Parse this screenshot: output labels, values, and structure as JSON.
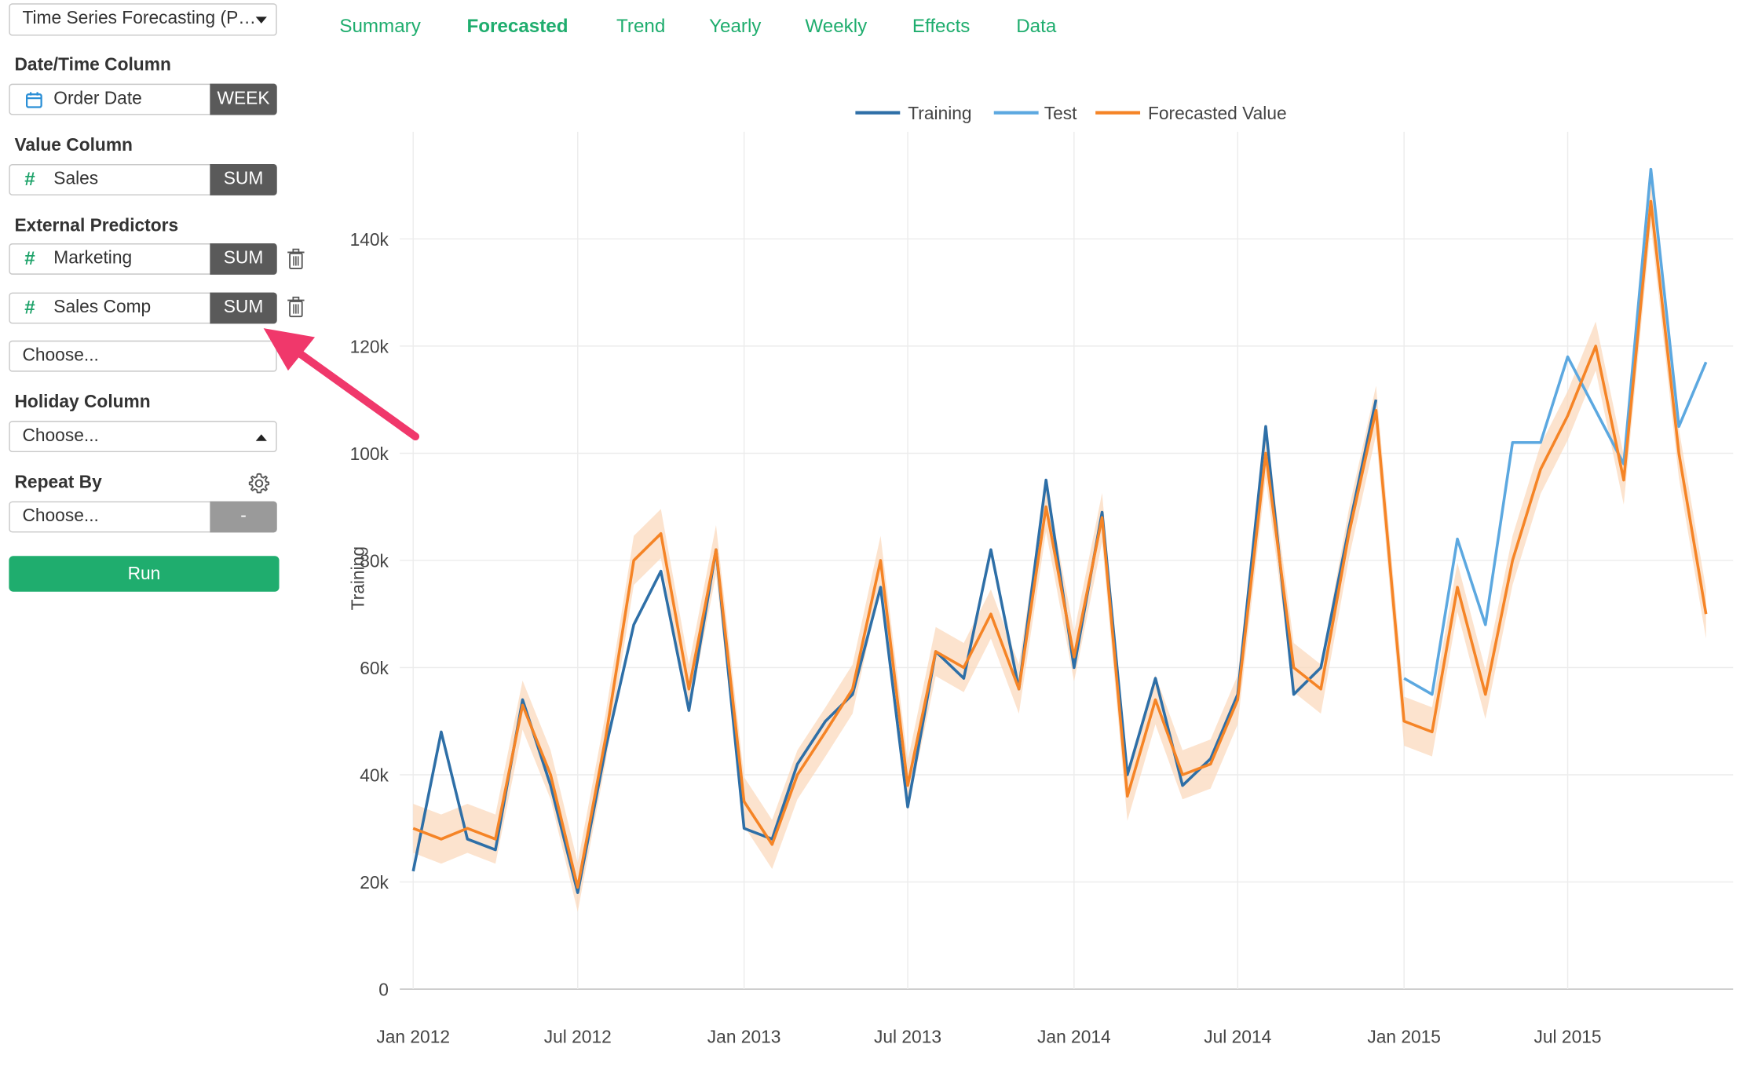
{
  "sidebar": {
    "analysis_select": "Time Series Forecasting (P…",
    "datetime_label": "Date/Time Column",
    "datetime_field": {
      "value": "Order Date",
      "agg": "WEEK",
      "icon": "calendar-icon"
    },
    "value_label": "Value Column",
    "value_field": {
      "value": "Sales",
      "agg": "SUM",
      "icon": "hash-icon"
    },
    "predictors_label": "External Predictors",
    "predictors": [
      {
        "value": "Marketing",
        "agg": "SUM",
        "icon": "hash-icon"
      },
      {
        "value": "Sales Comp",
        "agg": "SUM",
        "icon": "hash-icon"
      }
    ],
    "predictor_choose": "Choose...",
    "holiday_label": "Holiday Column",
    "holiday_choose": "Choose...",
    "repeat_label": "Repeat By",
    "repeat_choose": "Choose...",
    "repeat_agg": "-",
    "run_label": "Run"
  },
  "tabs": [
    {
      "label": "Summary",
      "active": false
    },
    {
      "label": "Forecasted",
      "active": true
    },
    {
      "label": "Trend",
      "active": false
    },
    {
      "label": "Yearly",
      "active": false
    },
    {
      "label": "Weekly",
      "active": false
    },
    {
      "label": "Effects",
      "active": false
    },
    {
      "label": "Data",
      "active": false
    }
  ],
  "colors": {
    "training": "#2e6fa7",
    "test": "#5ca8e0",
    "forecast": "#f58426",
    "band": "#fbd9bd",
    "accent": "#1fad6e",
    "arrow": "#f0386b"
  },
  "chart_data": {
    "type": "line",
    "ylabel": "Training",
    "legend_position": "top",
    "series_names": [
      "Training",
      "Test",
      "Forecasted Value"
    ],
    "x_ticks": [
      "Jan 2012",
      "Jul 2012",
      "Jan 2013",
      "Jul 2013",
      "Jan 2014",
      "Jul 2014",
      "Jan 2015",
      "Jul 2015"
    ],
    "y_ticks": [
      "0",
      "20k",
      "40k",
      "60k",
      "80k",
      "100k",
      "120k",
      "140k"
    ],
    "ylim": [
      0,
      160000
    ],
    "grid": true,
    "x_range": [
      "2012-01-01",
      "2015-12-31"
    ],
    "training": {
      "x": [
        "2012-01",
        "2012-02",
        "2012-03",
        "2012-04",
        "2012-05",
        "2012-06",
        "2012-07",
        "2012-08",
        "2012-09",
        "2012-10",
        "2012-11",
        "2012-12",
        "2013-01",
        "2013-02",
        "2013-03",
        "2013-04",
        "2013-05",
        "2013-06",
        "2013-07",
        "2013-08",
        "2013-09",
        "2013-10",
        "2013-11",
        "2013-12",
        "2014-01",
        "2014-02",
        "2014-03",
        "2014-04",
        "2014-05",
        "2014-06",
        "2014-07",
        "2014-08",
        "2014-09",
        "2014-10",
        "2014-11",
        "2014-12"
      ],
      "y": [
        22000,
        48000,
        28000,
        26000,
        54000,
        38000,
        18000,
        45000,
        68000,
        78000,
        52000,
        82000,
        30000,
        28000,
        42000,
        50000,
        55000,
        75000,
        34000,
        63000,
        58000,
        82000,
        56000,
        95000,
        60000,
        89000,
        40000,
        58000,
        38000,
        43000,
        55000,
        105000,
        55000,
        60000,
        86000,
        110000
      ]
    },
    "test": {
      "x": [
        "2015-01",
        "2015-02",
        "2015-03",
        "2015-04",
        "2015-05",
        "2015-06",
        "2015-07",
        "2015-08",
        "2015-09",
        "2015-10",
        "2015-11",
        "2015-12"
      ],
      "y": [
        58000,
        55000,
        84000,
        68000,
        102000,
        102000,
        118000,
        108000,
        98000,
        153000,
        105000,
        117000
      ]
    },
    "forecast": {
      "x": [
        "2012-01",
        "2012-02",
        "2012-03",
        "2012-04",
        "2012-05",
        "2012-06",
        "2012-07",
        "2012-08",
        "2012-09",
        "2012-10",
        "2012-11",
        "2012-12",
        "2013-01",
        "2013-02",
        "2013-03",
        "2013-04",
        "2013-05",
        "2013-06",
        "2013-07",
        "2013-08",
        "2013-09",
        "2013-10",
        "2013-11",
        "2013-12",
        "2014-01",
        "2014-02",
        "2014-03",
        "2014-04",
        "2014-05",
        "2014-06",
        "2014-07",
        "2014-08",
        "2014-09",
        "2014-10",
        "2014-11",
        "2014-12",
        "2015-01",
        "2015-02",
        "2015-03",
        "2015-04",
        "2015-05",
        "2015-06",
        "2015-07",
        "2015-08",
        "2015-09",
        "2015-10",
        "2015-11",
        "2015-12"
      ],
      "y": [
        30000,
        28000,
        30000,
        28000,
        53000,
        40000,
        19000,
        47000,
        80000,
        85000,
        56000,
        82000,
        35000,
        27000,
        40000,
        48000,
        56000,
        80000,
        38000,
        63000,
        60000,
        70000,
        56000,
        90000,
        62000,
        88000,
        36000,
        54000,
        40000,
        42000,
        54000,
        100000,
        60000,
        56000,
        85000,
        108000,
        50000,
        48000,
        75000,
        55000,
        80000,
        97000,
        107000,
        120000,
        95000,
        147000,
        100000,
        70000
      ]
    }
  }
}
